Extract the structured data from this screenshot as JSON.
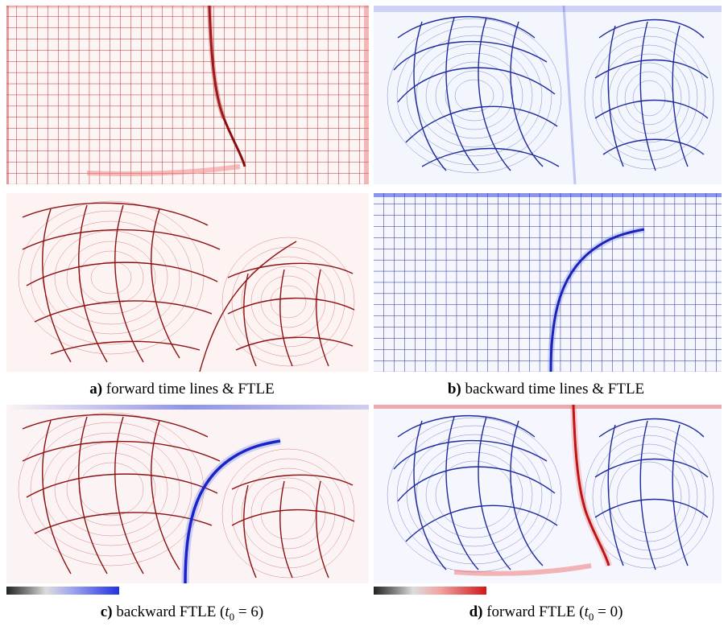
{
  "figure": {
    "captions": {
      "a": {
        "letter": "a)",
        "text": " forward time lines & FTLE"
      },
      "b": {
        "letter": "b)",
        "text": " backward time lines & FTLE"
      },
      "c": {
        "letter": "c)",
        "pre": " backward FTLE (",
        "var": "t",
        "sub": "0",
        "post": " = 6)"
      },
      "d": {
        "letter": "d)",
        "pre": " forward FTLE (",
        "var": "t",
        "sub": "0",
        "post": " = 0)"
      }
    },
    "colors": {
      "forward": "#b01818",
      "backward": "#1c2a9c",
      "forward_ftle": "#e02020",
      "backward_ftle": "#2233dd"
    }
  }
}
